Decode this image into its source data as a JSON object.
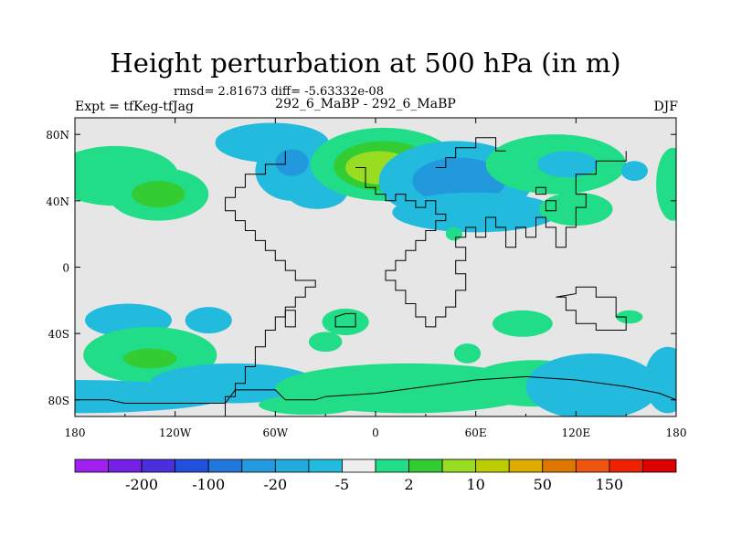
{
  "chart_data": {
    "type": "heatmap",
    "title": "Height perturbation at 500 hPa (in m)",
    "stats_line": "rmsd= 2.81673 diff= -5.63332e-08",
    "left_label": "Expt = tfKeg-tfJag",
    "center_label": "292_6_MaBP - 292_6_MaBP",
    "right_label": "DJF",
    "x_ticks": [
      {
        "value": -180,
        "label": "180"
      },
      {
        "value": -120,
        "label": "120W"
      },
      {
        "value": -60,
        "label": "60W"
      },
      {
        "value": 0,
        "label": "0"
      },
      {
        "value": 60,
        "label": "60E"
      },
      {
        "value": 120,
        "label": "120E"
      },
      {
        "value": 180,
        "label": "180"
      }
    ],
    "y_ticks": [
      {
        "value": 80,
        "label": "80N"
      },
      {
        "value": 40,
        "label": "40N"
      },
      {
        "value": 0,
        "label": "0"
      },
      {
        "value": -40,
        "label": "40S"
      },
      {
        "value": -80,
        "label": "80S"
      }
    ],
    "xlim": [
      -180,
      180
    ],
    "ylim": [
      -90,
      90
    ],
    "colorbar": {
      "colors": [
        "#a020f0",
        "#7520e6",
        "#4a30dd",
        "#2050dd",
        "#2277dd",
        "#2599dd",
        "#22aadd",
        "#22bbdd",
        "#eeeeee",
        "#22dd88",
        "#33cc33",
        "#99dd22",
        "#bbcc00",
        "#ddaa00",
        "#dd7700",
        "#ee5511",
        "#ee2200",
        "#dd0000"
      ],
      "labels": [
        "-200",
        "-100",
        "-20",
        "-5",
        "2",
        "10",
        "50",
        "150"
      ]
    },
    "anomalies": [
      {
        "lon": -156,
        "lat": 55,
        "rx": 38,
        "ry": 18,
        "level": 1
      },
      {
        "lon": -130,
        "lat": 44,
        "rx": 30,
        "ry": 16,
        "level": 1
      },
      {
        "lon": -130,
        "lat": 44,
        "rx": 16,
        "ry": 8,
        "level": 2
      },
      {
        "lon": -62,
        "lat": 75,
        "rx": 34,
        "ry": 12,
        "level": -1
      },
      {
        "lon": -50,
        "lat": 58,
        "rx": 22,
        "ry": 18,
        "level": -1
      },
      {
        "lon": -50,
        "lat": 63,
        "rx": 10,
        "ry": 8,
        "level": -2
      },
      {
        "lon": -35,
        "lat": 45,
        "rx": 18,
        "ry": 10,
        "level": -1
      },
      {
        "lon": 5,
        "lat": 62,
        "rx": 44,
        "ry": 22,
        "level": 1
      },
      {
        "lon": 5,
        "lat": 61,
        "rx": 30,
        "ry": 15,
        "level": 2
      },
      {
        "lon": 2,
        "lat": 60,
        "rx": 20,
        "ry": 10,
        "level": 3
      },
      {
        "lon": 48,
        "lat": 52,
        "rx": 46,
        "ry": 24,
        "level": -1
      },
      {
        "lon": 50,
        "lat": 52,
        "rx": 28,
        "ry": 14,
        "level": -2
      },
      {
        "lon": 60,
        "lat": 33,
        "rx": 50,
        "ry": 12,
        "level": -1
      },
      {
        "lon": 108,
        "lat": 62,
        "rx": 42,
        "ry": 18,
        "level": 1
      },
      {
        "lon": 115,
        "lat": 62,
        "rx": 18,
        "ry": 8,
        "level": -1
      },
      {
        "lon": 155,
        "lat": 58,
        "rx": 8,
        "ry": 6,
        "level": -1
      },
      {
        "lon": 120,
        "lat": 35,
        "rx": 22,
        "ry": 10,
        "level": 1
      },
      {
        "lon": 178,
        "lat": 50,
        "rx": 10,
        "ry": 22,
        "level": 1
      },
      {
        "lon": 47,
        "lat": 20,
        "rx": 5,
        "ry": 4,
        "level": 1
      },
      {
        "lon": -148,
        "lat": -32,
        "rx": 26,
        "ry": 10,
        "level": -1
      },
      {
        "lon": -100,
        "lat": -32,
        "rx": 14,
        "ry": 8,
        "level": -1
      },
      {
        "lon": -135,
        "lat": -53,
        "rx": 40,
        "ry": 17,
        "level": 1
      },
      {
        "lon": -135,
        "lat": -55,
        "rx": 16,
        "ry": 6,
        "level": 2
      },
      {
        "lon": -18,
        "lat": -33,
        "rx": 14,
        "ry": 8,
        "level": 1
      },
      {
        "lon": -30,
        "lat": -45,
        "rx": 10,
        "ry": 6,
        "level": 1
      },
      {
        "lon": 88,
        "lat": -34,
        "rx": 18,
        "ry": 8,
        "level": 1
      },
      {
        "lon": 152,
        "lat": -30,
        "rx": 8,
        "ry": 4,
        "level": 1
      },
      {
        "lon": 55,
        "lat": -52,
        "rx": 8,
        "ry": 6,
        "level": 1
      },
      {
        "lon": -180,
        "lat": -78,
        "rx": 90,
        "ry": 10,
        "level": -1
      },
      {
        "lon": -85,
        "lat": -70,
        "rx": 50,
        "ry": 12,
        "level": -1
      },
      {
        "lon": 20,
        "lat": -73,
        "rx": 80,
        "ry": 15,
        "level": 1
      },
      {
        "lon": 95,
        "lat": -70,
        "rx": 40,
        "ry": 14,
        "level": 1
      },
      {
        "lon": 130,
        "lat": -72,
        "rx": 40,
        "ry": 20,
        "level": -1
      },
      {
        "lon": 175,
        "lat": -68,
        "rx": 14,
        "ry": 20,
        "level": -1
      },
      {
        "lon": -40,
        "lat": -83,
        "rx": 30,
        "ry": 6,
        "level": 1
      }
    ],
    "coastlines": [
      [
        [
          -90,
          -90
        ],
        [
          -90,
          -78
        ],
        [
          -84,
          -78
        ],
        [
          -84,
          -70
        ],
        [
          -78,
          -70
        ],
        [
          -78,
          -60
        ],
        [
          -72,
          -60
        ],
        [
          -72,
          -48
        ],
        [
          -66,
          -48
        ],
        [
          -66,
          -38
        ],
        [
          -60,
          -38
        ],
        [
          -60,
          -30
        ],
        [
          -54,
          -30
        ],
        [
          -54,
          -24
        ],
        [
          -48,
          -24
        ],
        [
          -48,
          -18
        ],
        [
          -42,
          -18
        ],
        [
          -42,
          -12
        ],
        [
          -36,
          -12
        ],
        [
          -36,
          -8
        ],
        [
          -48,
          -8
        ],
        [
          -48,
          -2
        ],
        [
          -54,
          -2
        ],
        [
          -54,
          4
        ],
        [
          -60,
          4
        ],
        [
          -60,
          10
        ],
        [
          -66,
          10
        ],
        [
          -66,
          16
        ],
        [
          -72,
          16
        ],
        [
          -72,
          22
        ],
        [
          -78,
          22
        ],
        [
          -78,
          28
        ],
        [
          -84,
          28
        ],
        [
          -84,
          34
        ],
        [
          -90,
          34
        ],
        [
          -90,
          42
        ],
        [
          -84,
          42
        ],
        [
          -84,
          48
        ],
        [
          -78,
          48
        ],
        [
          -78,
          56
        ],
        [
          -66,
          56
        ],
        [
          -66,
          62
        ],
        [
          -54,
          62
        ],
        [
          -54,
          70
        ]
      ],
      [
        [
          -12,
          60
        ],
        [
          -6,
          60
        ],
        [
          -6,
          48
        ],
        [
          0,
          48
        ],
        [
          0,
          44
        ],
        [
          6,
          44
        ],
        [
          6,
          40
        ],
        [
          12,
          40
        ],
        [
          12,
          44
        ],
        [
          18,
          44
        ],
        [
          18,
          40
        ],
        [
          24,
          40
        ],
        [
          24,
          36
        ],
        [
          30,
          36
        ],
        [
          30,
          40
        ],
        [
          36,
          40
        ],
        [
          36,
          32
        ],
        [
          42,
          32
        ],
        [
          42,
          28
        ],
        [
          36,
          28
        ],
        [
          36,
          22
        ],
        [
          30,
          22
        ],
        [
          30,
          16
        ],
        [
          24,
          16
        ],
        [
          24,
          10
        ],
        [
          18,
          10
        ],
        [
          18,
          4
        ],
        [
          12,
          4
        ],
        [
          12,
          -2
        ],
        [
          6,
          -2
        ],
        [
          6,
          -8
        ],
        [
          12,
          -8
        ],
        [
          12,
          -14
        ],
        [
          18,
          -14
        ],
        [
          18,
          -22
        ],
        [
          24,
          -22
        ],
        [
          24,
          -30
        ],
        [
          30,
          -30
        ],
        [
          30,
          -36
        ],
        [
          36,
          -36
        ],
        [
          36,
          -30
        ],
        [
          42,
          -30
        ],
        [
          42,
          -24
        ],
        [
          48,
          -24
        ],
        [
          48,
          -14
        ],
        [
          54,
          -14
        ],
        [
          54,
          -4
        ],
        [
          48,
          -4
        ],
        [
          48,
          4
        ],
        [
          54,
          4
        ],
        [
          54,
          12
        ],
        [
          48,
          12
        ],
        [
          48,
          18
        ],
        [
          54,
          18
        ],
        [
          54,
          24
        ],
        [
          60,
          24
        ],
        [
          60,
          18
        ],
        [
          66,
          18
        ],
        [
          66,
          30
        ],
        [
          72,
          30
        ],
        [
          72,
          24
        ],
        [
          78,
          24
        ],
        [
          78,
          12
        ],
        [
          84,
          12
        ],
        [
          84,
          24
        ],
        [
          90,
          24
        ],
        [
          90,
          18
        ],
        [
          96,
          18
        ],
        [
          96,
          30
        ],
        [
          102,
          30
        ],
        [
          102,
          24
        ],
        [
          108,
          24
        ],
        [
          108,
          12
        ],
        [
          114,
          12
        ],
        [
          114,
          24
        ],
        [
          120,
          24
        ],
        [
          120,
          36
        ],
        [
          126,
          36
        ],
        [
          126,
          44
        ],
        [
          120,
          44
        ],
        [
          120,
          56
        ],
        [
          132,
          56
        ],
        [
          132,
          64
        ],
        [
          150,
          64
        ],
        [
          150,
          70
        ]
      ],
      [
        [
          36,
          60
        ],
        [
          42,
          60
        ],
        [
          42,
          66
        ],
        [
          48,
          66
        ],
        [
          48,
          72
        ],
        [
          60,
          72
        ],
        [
          60,
          78
        ],
        [
          72,
          78
        ],
        [
          72,
          70
        ],
        [
          78,
          70
        ]
      ],
      [
        [
          108,
          -18
        ],
        [
          114,
          -18
        ],
        [
          114,
          -26
        ],
        [
          120,
          -26
        ],
        [
          120,
          -34
        ],
        [
          132,
          -34
        ],
        [
          132,
          -38
        ],
        [
          150,
          -38
        ],
        [
          150,
          -30
        ],
        [
          144,
          -30
        ],
        [
          144,
          -18
        ],
        [
          132,
          -18
        ],
        [
          132,
          -12
        ],
        [
          120,
          -12
        ],
        [
          120,
          -16
        ],
        [
          108,
          -18
        ]
      ],
      [
        [
          -150,
          -82
        ],
        [
          -90,
          -82
        ],
        [
          -84,
          -74
        ],
        [
          -60,
          -74
        ],
        [
          -54,
          -80
        ],
        [
          -36,
          -80
        ],
        [
          -30,
          -78
        ],
        [
          0,
          -76
        ],
        [
          30,
          -72
        ],
        [
          60,
          -68
        ],
        [
          90,
          -66
        ],
        [
          120,
          -68
        ],
        [
          150,
          -72
        ],
        [
          170,
          -76
        ],
        [
          180,
          -80
        ]
      ],
      [
        [
          -180,
          -80
        ],
        [
          -160,
          -80
        ],
        [
          -150,
          -82
        ]
      ],
      [
        [
          -54,
          -26
        ],
        [
          -48,
          -26
        ],
        [
          -48,
          -36
        ],
        [
          -54,
          -36
        ],
        [
          -54,
          -26
        ]
      ],
      [
        [
          -18,
          -28
        ],
        [
          -12,
          -28
        ],
        [
          -12,
          -36
        ],
        [
          -24,
          -36
        ],
        [
          -24,
          -30
        ],
        [
          -18,
          -28
        ]
      ],
      [
        [
          102,
          40
        ],
        [
          108,
          40
        ],
        [
          108,
          34
        ],
        [
          102,
          34
        ],
        [
          102,
          40
        ]
      ],
      [
        [
          96,
          48
        ],
        [
          102,
          48
        ],
        [
          102,
          44
        ],
        [
          96,
          44
        ],
        [
          96,
          48
        ]
      ]
    ]
  }
}
